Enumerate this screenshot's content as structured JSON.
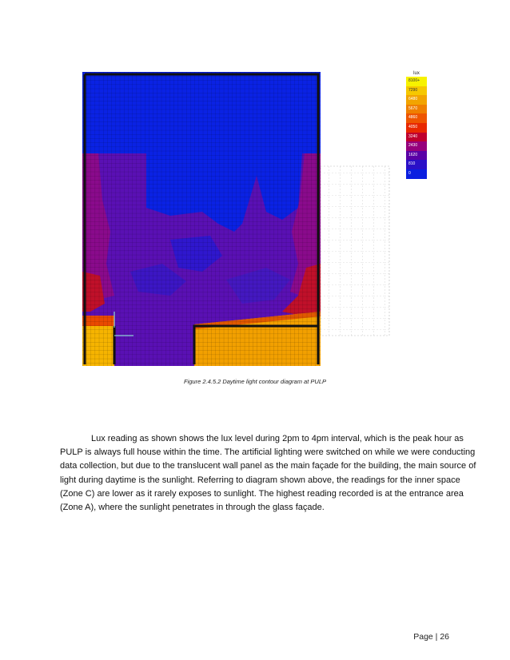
{
  "figure": {
    "legend": {
      "title": "lux",
      "items": [
        {
          "label": "8100+",
          "color": "#f7f200",
          "text": "#333333"
        },
        {
          "label": "7290",
          "color": "#f6c800",
          "text": "#333333"
        },
        {
          "label": "6480",
          "color": "#f2a400",
          "text": "#ffffff"
        },
        {
          "label": "5670",
          "color": "#ef7f00",
          "text": "#ffffff"
        },
        {
          "label": "4860",
          "color": "#ee5500",
          "text": "#ffffff"
        },
        {
          "label": "4050",
          "color": "#e82800",
          "text": "#ffffff"
        },
        {
          "label": "3240",
          "color": "#c0002e",
          "text": "#ffffff"
        },
        {
          "label": "2430",
          "color": "#96007c",
          "text": "#ffffff"
        },
        {
          "label": "1620",
          "color": "#5a00a6",
          "text": "#ffffff"
        },
        {
          "label": "810",
          "color": "#2a10c8",
          "text": "#ffffff"
        },
        {
          "label": "0",
          "color": "#0a1ee0",
          "text": "#ffffff"
        }
      ]
    },
    "caption": "Figure 2.4.5.2 Daytime light contour diagram at PULP"
  },
  "body": {
    "lines": [
      "Lux reading as shown shows the lux level during 2pm to 4pm interval, which is the peak hour as",
      "PULP is always full house within the time. The artificial lighting were switched on while we were conducting",
      "data collection, but due to the translucent wall panel as the main façade for the building, the main source of",
      "light during daytime is the sunlight. Referring to diagram shown above, the readings for the inner space",
      "(Zone C) are lower as it rarely exposes to sunlight. The highest reading recorded is at the entrance area",
      "(Zone A), where the sunlight penetrates in through the glass façade."
    ]
  },
  "footer": {
    "page_label": "Page | 26"
  }
}
